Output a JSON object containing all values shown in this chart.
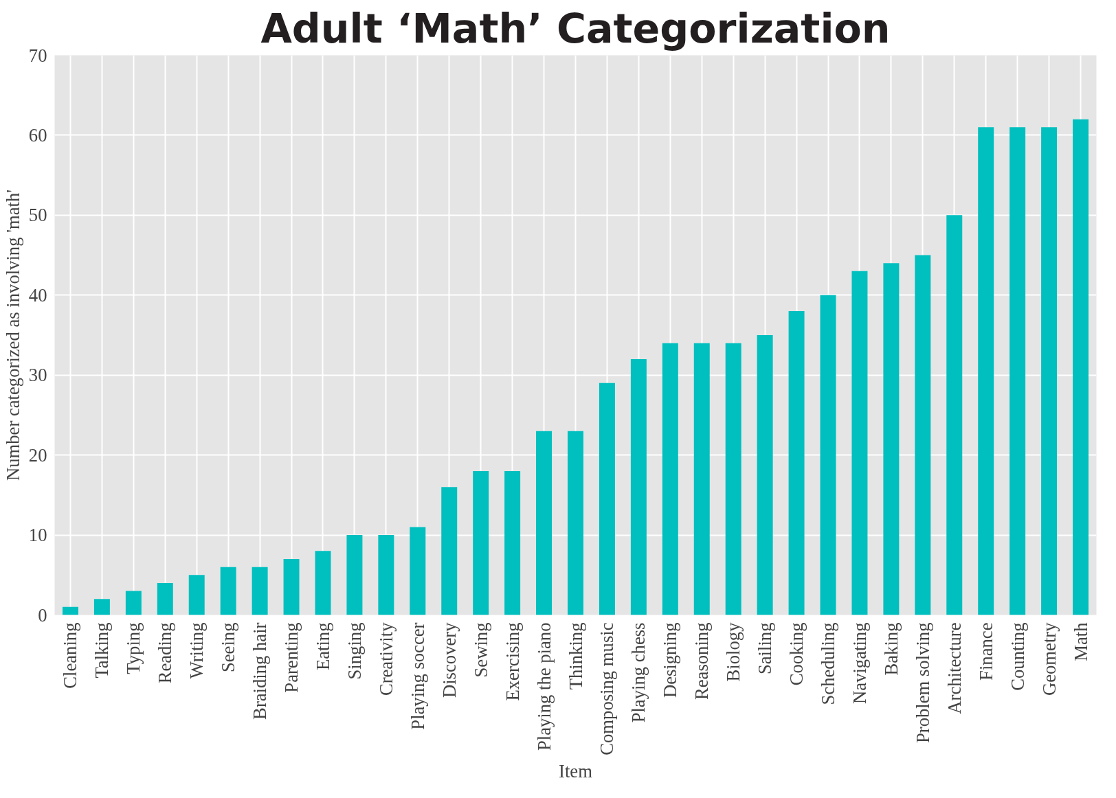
{
  "chart_data": {
    "type": "bar",
    "title": "Adult ‘Math’ Categorization",
    "xlabel": "Item",
    "ylabel": "Number categorized as involving 'math'",
    "categories": [
      "Cleaning",
      "Talking",
      "Typing",
      "Reading",
      "Writing",
      "Seeing",
      "Braiding hair",
      "Parenting",
      "Eating",
      "Singing",
      "Creativity",
      "Playing soccer",
      "Discovery",
      "Sewing",
      "Exercising",
      "Playing the piano",
      "Thinking",
      "Composing music",
      "Playing chess",
      "Designing",
      "Reasoning",
      "Biology",
      "Sailing",
      "Cooking",
      "Scheduling",
      "Navigating",
      "Baking",
      "Problem solving",
      "Architecture",
      "Finance",
      "Counting",
      "Geometry",
      "Math"
    ],
    "values": [
      1,
      2,
      3,
      4,
      5,
      6,
      6,
      7,
      8,
      10,
      10,
      11,
      16,
      18,
      18,
      23,
      23,
      29,
      32,
      34,
      34,
      34,
      35,
      38,
      40,
      43,
      44,
      45,
      50,
      61,
      61,
      61,
      62
    ],
    "color": "#00bfbf",
    "ylim": [
      0,
      70
    ],
    "yticks": [
      0,
      10,
      20,
      30,
      40,
      50,
      60,
      70
    ],
    "grid": true
  }
}
